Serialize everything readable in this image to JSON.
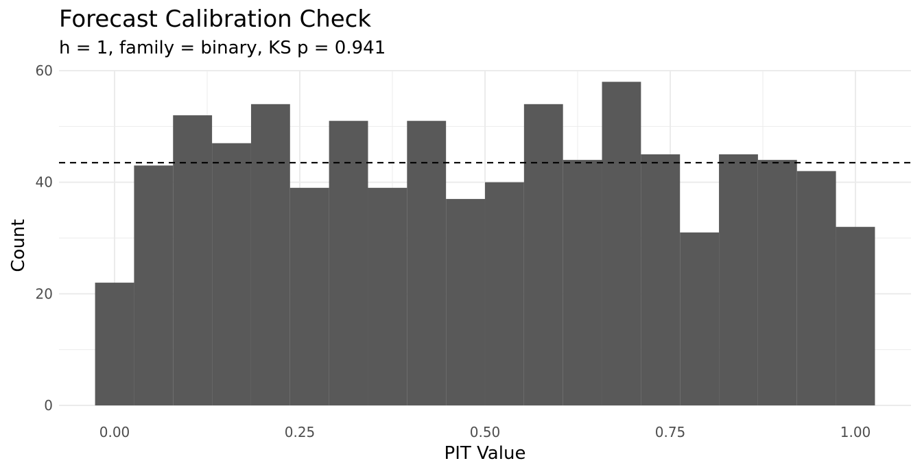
{
  "chart_data": {
    "type": "bar",
    "title": "Forecast Calibration Check",
    "subtitle": "h = 1, family = binary, KS p = 0.941",
    "xlabel": "PIT Value",
    "ylabel": "Count",
    "xlim": [
      -0.075,
      1.075
    ],
    "ylim": [
      0,
      60
    ],
    "bin_width": 0.05263,
    "bin_centers": [
      0.0,
      0.05263,
      0.10526,
      0.15789,
      0.21053,
      0.26316,
      0.31579,
      0.36842,
      0.42105,
      0.47368,
      0.52632,
      0.57895,
      0.63158,
      0.68421,
      0.73684,
      0.78947,
      0.84211,
      0.89474,
      0.94737,
      1.0
    ],
    "values": [
      22,
      43,
      52,
      47,
      54,
      39,
      51,
      39,
      51,
      37,
      40,
      54,
      44,
      58,
      45,
      31,
      45,
      44,
      42,
      32
    ],
    "reference_line": {
      "y": 43.5,
      "style": "dashed"
    },
    "x_ticks": [
      0.0,
      0.25,
      0.5,
      0.75,
      1.0
    ],
    "x_tick_labels": [
      "0.00",
      "0.25",
      "0.50",
      "0.75",
      "1.00"
    ],
    "y_ticks": [
      0,
      20,
      40,
      60
    ],
    "y_tick_labels": [
      "0",
      "20",
      "40",
      "60"
    ],
    "grid": true,
    "bar_color": "#595959",
    "grid_color": "#ebebeb"
  }
}
